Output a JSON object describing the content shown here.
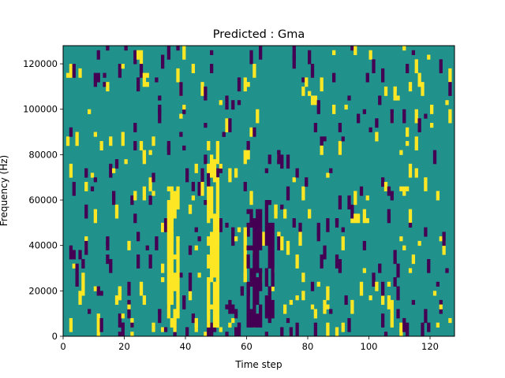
{
  "chart_data": {
    "type": "heatmap",
    "title": "Predicted : Gma",
    "xlabel": "Time step",
    "ylabel": "Frequency (Hz)",
    "xlim": [
      0,
      128
    ],
    "ylim": [
      0,
      128000
    ],
    "x_ticks": [
      0,
      20,
      40,
      60,
      80,
      100,
      120
    ],
    "y_ticks": [
      0,
      20000,
      40000,
      60000,
      80000,
      100000,
      120000
    ],
    "y_tick_labels": [
      "0",
      "20000",
      "40000",
      "60000",
      "80000",
      "100000",
      "120000"
    ],
    "grid": false,
    "colormap": "viridis",
    "colors": {
      "background": "#21918c",
      "high": "#fde725",
      "low": "#440154"
    },
    "n_frequency_bins": 64,
    "frequency_bin_hz": 2000,
    "strong_columns": [
      {
        "time_range": [
          34,
          38
        ],
        "frequency_range": [
          8000,
          66000
        ],
        "value": "high"
      },
      {
        "time_range": [
          47,
          51
        ],
        "frequency_range": [
          4000,
          86000
        ],
        "value": "high"
      },
      {
        "time_range": [
          59,
          60
        ],
        "frequency_range": [
          24000,
          48000
        ],
        "value": "high"
      },
      {
        "time_range": [
          60,
          65
        ],
        "frequency_range": [
          4000,
          56000
        ],
        "value": "low"
      },
      {
        "time_range": [
          66,
          69
        ],
        "frequency_range": [
          8000,
          60000
        ],
        "value": "low"
      }
    ]
  }
}
